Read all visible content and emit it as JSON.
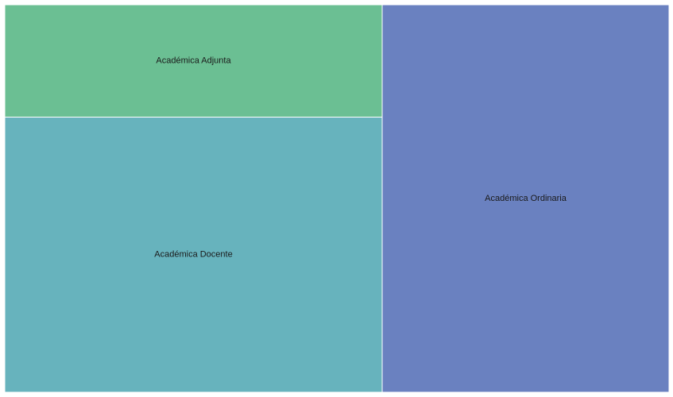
{
  "chart_data": {
    "type": "treemap",
    "title": "",
    "items": [
      {
        "label": "Académica Adjunta",
        "value": 14.5,
        "color": "#6bbf93"
      },
      {
        "label": "Académica Docente",
        "value": 35.5,
        "color": "#67b3bd"
      },
      {
        "label": "Académica Ordinaria",
        "value": 38.0,
        "color": "#6a81c0"
      }
    ],
    "legend": "none",
    "grid": false
  }
}
